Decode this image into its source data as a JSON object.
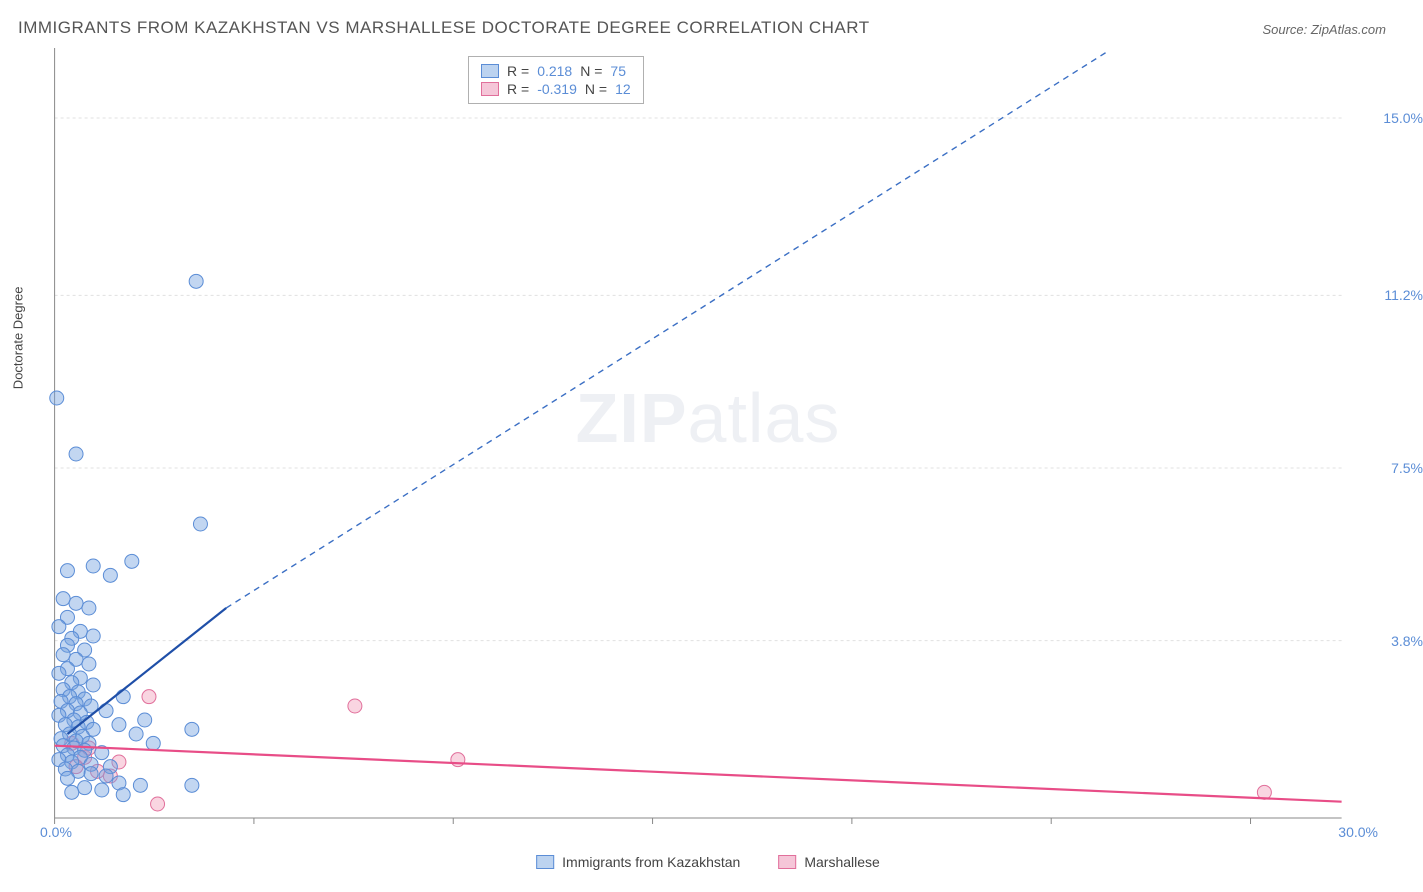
{
  "title": "IMMIGRANTS FROM KAZAKHSTAN VS MARSHALLESE DOCTORATE DEGREE CORRELATION CHART",
  "source_label": "Source: ",
  "source_name": "ZipAtlas.com",
  "ylabel": "Doctorate Degree",
  "watermark_a": "ZIP",
  "watermark_b": "atlas",
  "chart": {
    "type": "scatter",
    "background_color": "#ffffff",
    "grid_color": "#e0e0e0",
    "grid_dash": "3,3",
    "axis_color": "#888888",
    "plot_left_pct": 0.5,
    "plot_width_pct": 97.5,
    "x": {
      "min": 0.0,
      "max": 30.0,
      "min_label": "0.0%",
      "max_label": "30.0%",
      "ticks_pct": [
        0.5,
        15.6,
        30.7,
        45.8,
        60.9,
        76.0,
        91.1
      ]
    },
    "y": {
      "min": 0.0,
      "max": 16.5,
      "gridlines": [
        {
          "v": 3.8,
          "label": "3.8%"
        },
        {
          "v": 7.5,
          "label": "7.5%"
        },
        {
          "v": 11.2,
          "label": "11.2%"
        },
        {
          "v": 15.0,
          "label": "15.0%"
        }
      ]
    },
    "series": [
      {
        "id": "kazakhstan",
        "name": "Immigrants from Kazakhstan",
        "color_fill": "rgba(120,165,225,0.45)",
        "color_stroke": "#5b8dd6",
        "swatch_fill": "#bcd3f0",
        "swatch_stroke": "#5b8dd6",
        "r_label": "R =",
        "r_value": "0.218",
        "n_label": "N =",
        "n_value": "75",
        "marker_r": 7,
        "trend": {
          "solid_color": "#1f4fa8",
          "solid_width": 2.2,
          "x1": 0.3,
          "y1": 1.8,
          "x2": 4.0,
          "y2": 4.5,
          "dash_color": "#3b6fc4",
          "dash_pattern": "6,5",
          "dash_width": 1.4,
          "dx1": 4.0,
          "dy1": 4.5,
          "dx2": 24.5,
          "dy2": 16.4
        },
        "points": [
          [
            0.05,
            9.0
          ],
          [
            0.5,
            7.8
          ],
          [
            3.3,
            11.5
          ],
          [
            3.4,
            6.3
          ],
          [
            1.8,
            5.5
          ],
          [
            0.9,
            5.4
          ],
          [
            0.3,
            5.3
          ],
          [
            1.3,
            5.2
          ],
          [
            0.2,
            4.7
          ],
          [
            0.5,
            4.6
          ],
          [
            0.8,
            4.5
          ],
          [
            0.3,
            4.3
          ],
          [
            0.1,
            4.1
          ],
          [
            0.6,
            4.0
          ],
          [
            0.9,
            3.9
          ],
          [
            0.4,
            3.85
          ],
          [
            0.3,
            3.7
          ],
          [
            0.7,
            3.6
          ],
          [
            0.2,
            3.5
          ],
          [
            0.5,
            3.4
          ],
          [
            0.8,
            3.3
          ],
          [
            0.3,
            3.2
          ],
          [
            0.1,
            3.1
          ],
          [
            0.6,
            3.0
          ],
          [
            0.4,
            2.9
          ],
          [
            0.9,
            2.85
          ],
          [
            0.2,
            2.75
          ],
          [
            0.55,
            2.7
          ],
          [
            0.35,
            2.6
          ],
          [
            0.7,
            2.55
          ],
          [
            0.15,
            2.5
          ],
          [
            0.5,
            2.45
          ],
          [
            0.85,
            2.4
          ],
          [
            0.3,
            2.3
          ],
          [
            0.6,
            2.25
          ],
          [
            0.1,
            2.2
          ],
          [
            0.45,
            2.1
          ],
          [
            0.75,
            2.05
          ],
          [
            0.25,
            2.0
          ],
          [
            0.55,
            1.95
          ],
          [
            0.9,
            1.9
          ],
          [
            0.35,
            1.8
          ],
          [
            0.65,
            1.75
          ],
          [
            0.15,
            1.7
          ],
          [
            0.5,
            1.65
          ],
          [
            0.8,
            1.6
          ],
          [
            0.2,
            1.55
          ],
          [
            0.45,
            1.5
          ],
          [
            0.7,
            1.45
          ],
          [
            1.1,
            1.4
          ],
          [
            0.3,
            1.35
          ],
          [
            0.6,
            1.3
          ],
          [
            0.1,
            1.25
          ],
          [
            0.4,
            1.2
          ],
          [
            0.85,
            1.15
          ],
          [
            1.3,
            1.1
          ],
          [
            0.25,
            1.05
          ],
          [
            1.5,
            2.0
          ],
          [
            1.9,
            1.8
          ],
          [
            2.3,
            1.6
          ],
          [
            3.2,
            1.9
          ],
          [
            1.2,
            2.3
          ],
          [
            1.6,
            2.6
          ],
          [
            2.1,
            2.1
          ],
          [
            0.55,
            1.0
          ],
          [
            0.85,
            0.95
          ],
          [
            1.2,
            0.9
          ],
          [
            0.3,
            0.85
          ],
          [
            1.5,
            0.75
          ],
          [
            2.0,
            0.7
          ],
          [
            0.7,
            0.65
          ],
          [
            1.1,
            0.6
          ],
          [
            3.2,
            0.7
          ],
          [
            0.4,
            0.55
          ],
          [
            1.6,
            0.5
          ]
        ]
      },
      {
        "id": "marshallese",
        "name": "Marshallese",
        "color_fill": "rgba(240,150,180,0.40)",
        "color_stroke": "#e16f9b",
        "swatch_fill": "#f5c6d8",
        "swatch_stroke": "#e16f9b",
        "r_label": "R =",
        "r_value": "-0.319",
        "n_label": "N =",
        "n_value": "12",
        "marker_r": 7,
        "trend": {
          "solid_color": "#e84d87",
          "solid_width": 2.2,
          "x1": 0.0,
          "y1": 1.55,
          "x2": 30.0,
          "y2": 0.35
        },
        "points": [
          [
            0.4,
            1.6
          ],
          [
            0.7,
            1.3
          ],
          [
            1.0,
            1.0
          ],
          [
            1.3,
            0.9
          ],
          [
            0.8,
            1.5
          ],
          [
            2.2,
            2.6
          ],
          [
            0.5,
            1.1
          ],
          [
            1.5,
            1.2
          ],
          [
            7.0,
            2.4
          ],
          [
            9.4,
            1.25
          ],
          [
            2.4,
            0.3
          ],
          [
            28.2,
            0.55
          ]
        ]
      }
    ]
  }
}
